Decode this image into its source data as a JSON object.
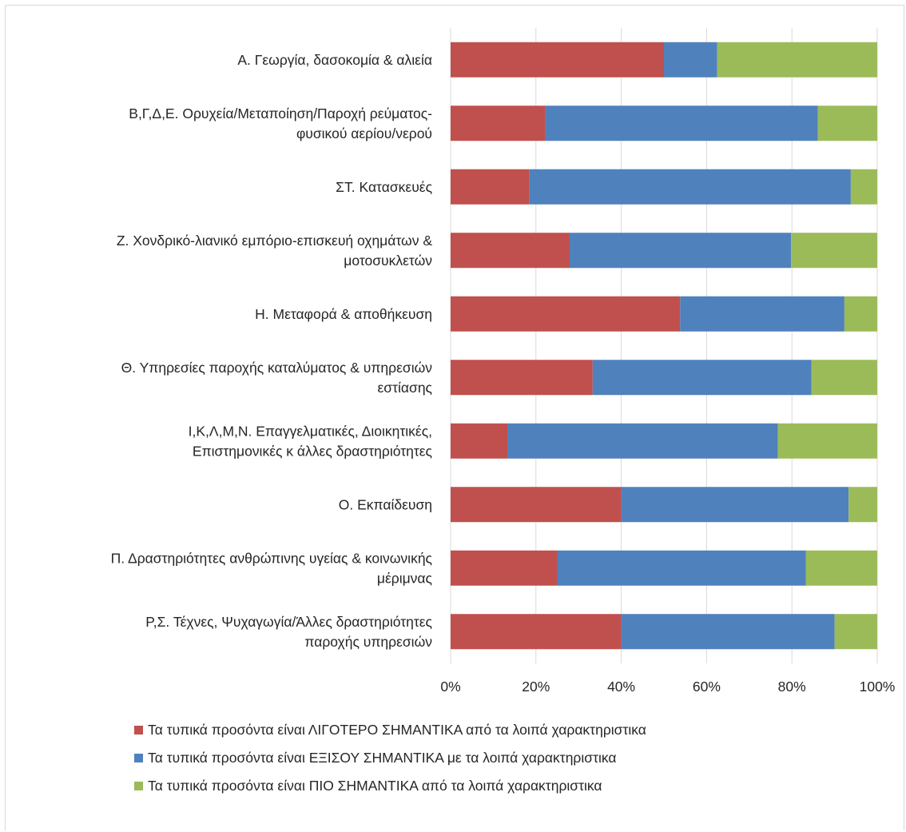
{
  "chart_data": {
    "type": "bar",
    "orientation": "horizontal",
    "stacked": "percent",
    "categories": [
      [
        "Α. Γεωργία, δασοκομία & αλιεία"
      ],
      [
        "Β,Γ,Δ,Ε. Ορυχεία/Μεταποίηση/Παροχή ρεύματος-",
        "φυσικού αερίου/νερού"
      ],
      [
        "ΣΤ. Κατασκευές"
      ],
      [
        "Ζ. Χονδρικό-λιανικό εμπόριο-επισκευή οχημάτων &",
        "μοτοσυκλετών"
      ],
      [
        "Η. Μεταφορά & αποθήκευση"
      ],
      [
        "Θ. Υπηρεσίες παροχής καταλύματος & υπηρεσιών",
        "εστίασης"
      ],
      [
        "Ι,Κ,Λ,Μ,Ν. Επαγγελματικές, Διοικητικές,",
        "Επιστημονικές κ άλλες δραστηριότητες"
      ],
      [
        "Ο. Εκπαίδευση"
      ],
      [
        "Π. Δραστηριότητες ανθρώπινης υγείας & κοινωνικής",
        "μέριμνας"
      ],
      [
        "Ρ,Σ. Τέχνες, Ψυχαγωγία/Άλλες δραστηριότητες",
        "παροχής υπηρεσιών"
      ]
    ],
    "series": [
      {
        "name": "Τα τυπικά προσόντα είναι ΛΙΓΟΤΕΡΟ ΣΗΜΑΝΤΙΚΑ από τα λοιπά χαρακτηριστικα",
        "color": "#c0504d",
        "values": [
          50.0,
          22.2,
          18.5,
          27.9,
          53.8,
          33.3,
          13.3,
          40.0,
          25.0,
          40.0
        ]
      },
      {
        "name": "Τα τυπικά προσόντα είναι ΕΞΙΣΟΥ ΣΗΜΑΝΤΙΚΑ με τα λοιπά χαρακτηριστικα",
        "color": "#4f81bd",
        "values": [
          12.5,
          63.9,
          75.3,
          51.9,
          38.5,
          51.3,
          63.4,
          53.3,
          58.3,
          50.0
        ]
      },
      {
        "name": "Τα τυπικά προσόντα είναι ΠΙΟ ΣΗΜΑΝΤΙΚΑ από τα λοιπά χαρακτηριστικα",
        "color": "#9bbb59",
        "values": [
          37.5,
          13.9,
          6.2,
          20.2,
          7.7,
          15.4,
          23.3,
          6.7,
          16.7,
          10.0
        ]
      }
    ],
    "x_ticks": [
      "0%",
      "20%",
      "40%",
      "60%",
      "80%",
      "100%"
    ],
    "xlim": [
      0,
      100
    ],
    "grid": true,
    "legend_position": "bottom"
  }
}
